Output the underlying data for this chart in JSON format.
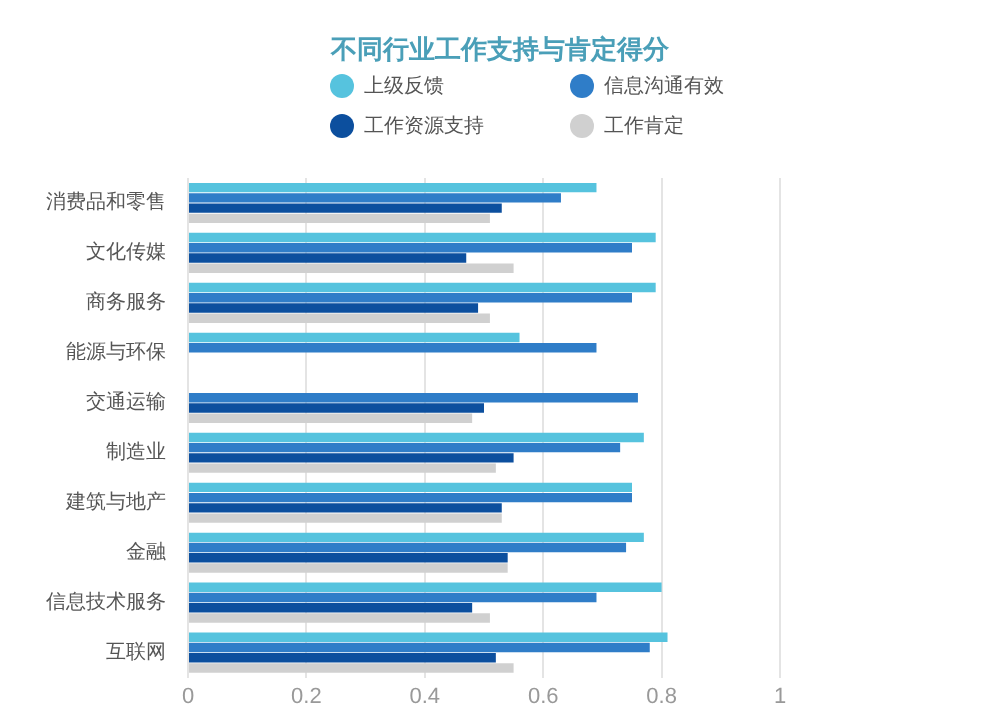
{
  "chart_data": {
    "type": "bar",
    "orientation": "horizontal",
    "title": "不同行业工作支持与肯定得分",
    "categories": [
      "消费品和零售",
      "文化传媒",
      "商务服务",
      "能源与环保",
      "交通运输",
      "制造业",
      "建筑与地产",
      "金融",
      "信息技术服务",
      "互联网"
    ],
    "series": [
      {
        "name": "上级反馈",
        "color": "#56c3de",
        "values": [
          0.69,
          0.79,
          0.79,
          0.56,
          null,
          0.77,
          0.75,
          0.77,
          0.8,
          0.81
        ]
      },
      {
        "name": "信息沟通有效",
        "color": "#2f7dc8",
        "values": [
          0.63,
          0.75,
          0.75,
          0.69,
          0.76,
          0.73,
          0.75,
          0.74,
          0.69,
          0.78
        ]
      },
      {
        "name": "工作资源支持",
        "color": "#0c4f9e",
        "values": [
          0.53,
          0.47,
          0.49,
          null,
          0.5,
          0.55,
          0.53,
          0.54,
          0.48,
          0.52
        ]
      },
      {
        "name": "工作肯定",
        "color": "#d0d0d0",
        "values": [
          0.51,
          0.55,
          0.51,
          null,
          0.48,
          0.52,
          0.53,
          0.54,
          0.51,
          0.55
        ]
      }
    ],
    "xlim": [
      0,
      1
    ],
    "xticks": [
      0,
      0.2,
      0.4,
      0.6,
      0.8,
      1
    ],
    "grid": "x",
    "legend": "top"
  }
}
